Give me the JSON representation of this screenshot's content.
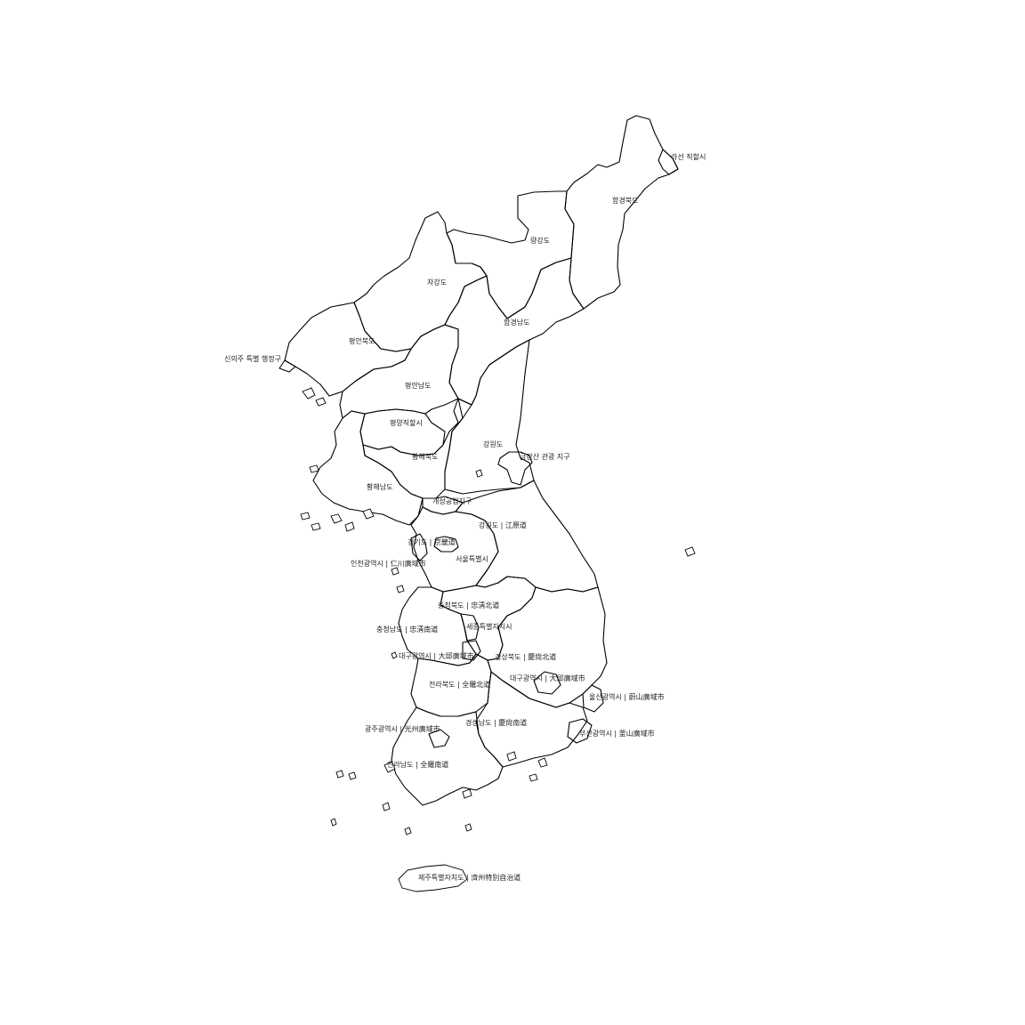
{
  "map": {
    "labels": {
      "rason": "라선 직할시",
      "hamgyong_north": "함경북도",
      "ryanggang": "량강도",
      "chagang": "자강도",
      "hamgyong_south": "함경남도",
      "pyongan_north": "평안북도",
      "sinuiju": "신의주 특별 행정구",
      "pyongan_south": "평안남도",
      "pyongyang": "평양직할시",
      "kangwon_north": "강원도",
      "kumgangsan": "금강산 관광 지구",
      "hwanghae_north": "황해북도",
      "hwanghae_south": "황해남도",
      "kaesong": "개성공업지구",
      "gangwon_south": "강원도 | 江原道",
      "gyeonggi": "경기도 | 京畿道",
      "seoul": "서울특별시",
      "incheon": "인천광역시 | 仁川廣域市",
      "chungbuk": "충청북도 | 忠淸北道",
      "chungnam": "충청남도 | 忠淸南道",
      "sejong": "세종특별자치시",
      "daejeon": "대구광역시 | 大邱廣域市",
      "gyeongbuk": "경상북도 | 慶尙北道",
      "jeonbuk": "전라북도 | 全羅北道",
      "daegu": "대구광역시 | 大邱廣域市",
      "ulsan": "울산광역시 | 蔚山廣域市",
      "gyeongnam": "경상남도 | 慶尙南道",
      "gwangju": "광주광역시 | 光州廣域市",
      "busan": "부산광역시 | 釜山廣域市",
      "jeonnam": "전라남도 | 全羅南道",
      "jeju": "제주특별자치도 | 濟州特別自治道"
    }
  }
}
